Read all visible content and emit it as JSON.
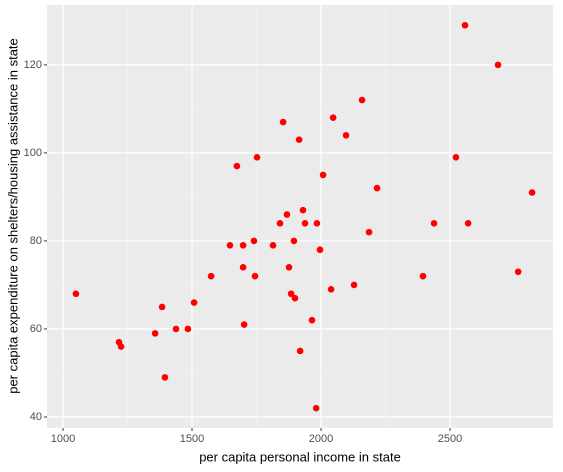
{
  "chart_data": {
    "type": "scatter",
    "x_label": "per capita personal income in state",
    "y_label": "per capita expenditure on shelters/housing assistance in state",
    "color": "#ff0000",
    "grid": true,
    "xlim": [
      938,
      2899
    ],
    "ylim": [
      37.5,
      133.6
    ],
    "xticks": [
      1000,
      1500,
      2000,
      2500
    ],
    "yticks": [
      40,
      60,
      80,
      100,
      120
    ],
    "x": [
      1050,
      1217,
      1225,
      1357,
      1384,
      1395,
      1438,
      1484,
      1508,
      1574,
      1647,
      1674,
      1698,
      1698,
      1702,
      1740,
      1744,
      1752,
      1814,
      1841,
      1853,
      1868,
      1876,
      1884,
      1895,
      1899,
      1915,
      1919,
      1930,
      1938,
      1965,
      1984,
      1981,
      1996,
      2008,
      2039,
      2047,
      2097,
      2128,
      2159,
      2186,
      2217,
      2395,
      2438,
      2523,
      2558,
      2570,
      2686,
      2764,
      2818
    ],
    "y": [
      68,
      57,
      56,
      59,
      65,
      49,
      60,
      60,
      66,
      72,
      79,
      97,
      79,
      74,
      61,
      80,
      72,
      99,
      79,
      84,
      107,
      86,
      74,
      68,
      80,
      67,
      103,
      55,
      87,
      84,
      62,
      84,
      42,
      78,
      95,
      69,
      108,
      104,
      70,
      112,
      82,
      92,
      72,
      84,
      99,
      129,
      84,
      120,
      73,
      91
    ]
  }
}
